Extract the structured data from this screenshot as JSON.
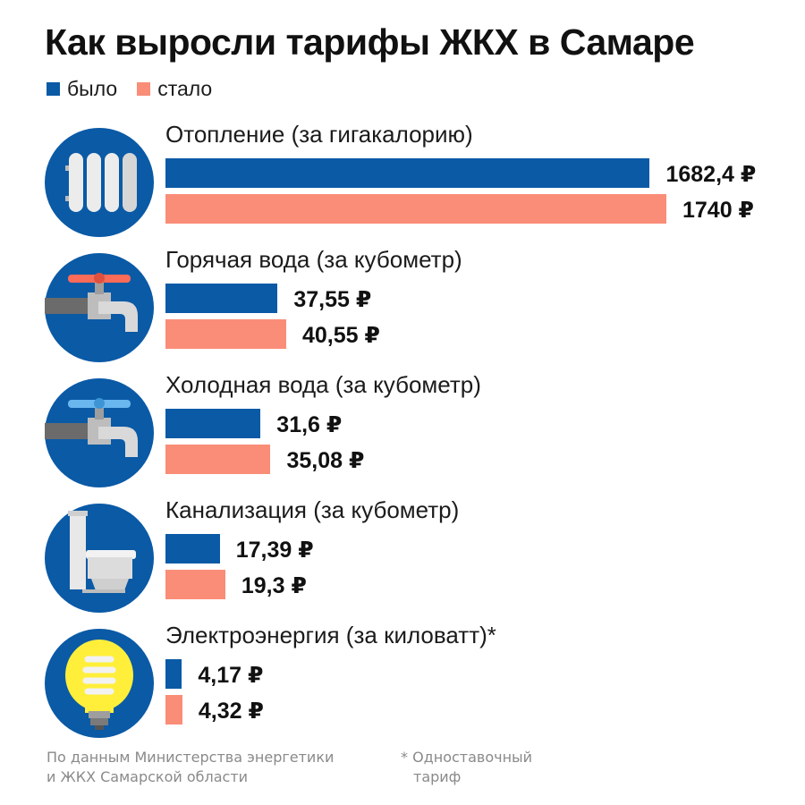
{
  "title": "Как выросли тарифы ЖКХ в Самаре",
  "colors": {
    "before": "#0a5aa6",
    "after": "#fa8d78",
    "icon_bg": "#0a5aa6"
  },
  "chart_data": {
    "type": "bar",
    "orientation": "horizontal",
    "title": "Как выросли тарифы ЖКХ в Самаре",
    "legend": {
      "placement": "top-left",
      "entries": [
        "было",
        "стало"
      ]
    },
    "categories": [
      "Отопление (за гигакалорию)",
      "Горячая вода (за кубометр)",
      "Холодная вода (за кубометр)",
      "Канализация (за кубометр)",
      "Электроэнергия (за киловатт)*"
    ],
    "icons": [
      "radiator-icon",
      "hot-water-tap-icon",
      "cold-water-tap-icon",
      "toilet-icon",
      "lightbulb-icon"
    ],
    "series": [
      {
        "name": "было",
        "values": [
          1682.4,
          37.55,
          31.6,
          17.39,
          4.17
        ],
        "labels": [
          "1682,4 ₽",
          "37,55 ₽",
          "31,6 ₽",
          "17,39 ₽",
          "4,17 ₽"
        ]
      },
      {
        "name": "стало",
        "values": [
          1740,
          40.55,
          35.08,
          19.3,
          4.32
        ],
        "labels": [
          "1740 ₽",
          "40,55 ₽",
          "35,08 ₽",
          "19,3 ₽",
          "4,32 ₽"
        ]
      }
    ],
    "grid": false
  },
  "footer": {
    "source_line1": "По данным Министерства энергетики",
    "source_line2": "и ЖКХ Самарской области",
    "note_line1": "* Одноставочный",
    "note_line2": "тариф"
  }
}
